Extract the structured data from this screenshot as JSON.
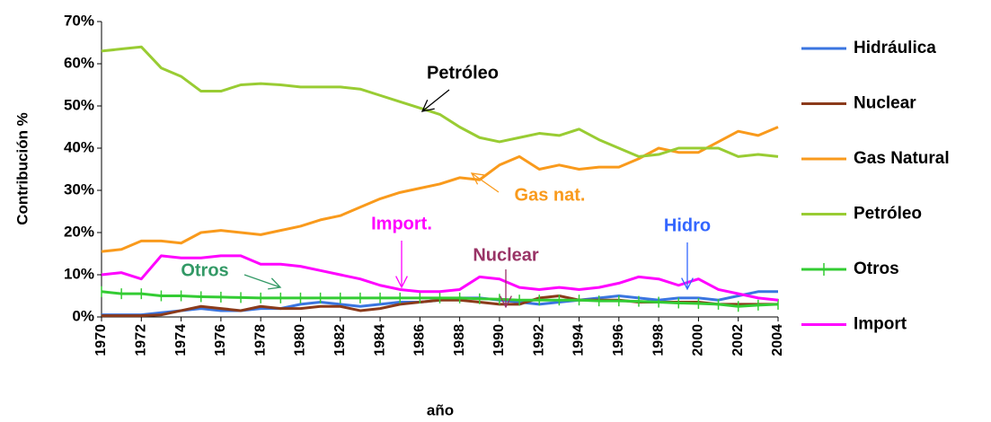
{
  "chart_data": {
    "type": "line",
    "y_label": "Contribución %",
    "x_label": "año",
    "x": [
      1970,
      1971,
      1972,
      1973,
      1974,
      1975,
      1976,
      1977,
      1978,
      1979,
      1980,
      1981,
      1982,
      1983,
      1984,
      1985,
      1986,
      1987,
      1988,
      1989,
      1990,
      1991,
      1992,
      1993,
      1994,
      1995,
      1996,
      1997,
      1998,
      1999,
      2000,
      2001,
      2002,
      2003,
      2004
    ],
    "xlim": [
      1970,
      2004
    ],
    "xticks": [
      1970,
      1972,
      1974,
      1976,
      1978,
      1980,
      1982,
      1984,
      1986,
      1988,
      1990,
      1992,
      1994,
      1996,
      1998,
      2000,
      2002,
      2004
    ],
    "ylim": [
      0,
      70
    ],
    "yticks": [
      {
        "value": 0,
        "label": "0%"
      },
      {
        "value": 10,
        "label": "10%"
      },
      {
        "value": 20,
        "label": "20%"
      },
      {
        "value": 30,
        "label": "30%"
      },
      {
        "value": 40,
        "label": "40%"
      },
      {
        "value": 50,
        "label": "50%"
      },
      {
        "value": 60,
        "label": "60%"
      },
      {
        "value": 70,
        "label": "70%"
      }
    ],
    "grid": false,
    "legend": "right",
    "series": [
      {
        "name": "Hidráulica",
        "color": "#3a75e0",
        "values": [
          0.5,
          0.5,
          0.5,
          1,
          1.5,
          2,
          1.5,
          1.5,
          2,
          2,
          3,
          3.5,
          3,
          2.5,
          3,
          3.5,
          3.5,
          4,
          4.5,
          4.5,
          4,
          3.5,
          3,
          3.5,
          4,
          4.5,
          5,
          4.5,
          4,
          4.5,
          4.5,
          4,
          5,
          6,
          6
        ]
      },
      {
        "name": "Nuclear",
        "color": "#8b3a1a",
        "values": [
          0.3,
          0.3,
          0.3,
          0.5,
          1.5,
          2.5,
          2,
          1.5,
          2.5,
          2,
          2,
          2.5,
          2.5,
          1.5,
          2,
          3,
          3.5,
          4,
          4,
          3.5,
          3,
          3,
          4.5,
          5,
          4,
          4,
          4,
          3.5,
          3.5,
          3.5,
          3.5,
          3,
          3,
          3,
          3
        ]
      },
      {
        "name": "Gas Natural",
        "color": "#f99a1c",
        "values": [
          15.5,
          16,
          18,
          18,
          17.5,
          20,
          20.5,
          20,
          19.5,
          20.5,
          21.5,
          23,
          24,
          26,
          28,
          29.5,
          30.5,
          31.5,
          33,
          32.5,
          36,
          38,
          35,
          36,
          35,
          35.5,
          35.5,
          37.5,
          40,
          39,
          39,
          41.5,
          44,
          43,
          45
        ]
      },
      {
        "name": "Petróleo",
        "color": "#99cc33",
        "values": [
          63,
          63.5,
          64,
          59,
          57,
          53.5,
          53.5,
          55,
          55.3,
          55,
          54.5,
          54.5,
          54.5,
          54,
          52.5,
          51,
          49.5,
          48,
          45,
          42.5,
          41.5,
          42.5,
          43.5,
          43,
          44.5,
          42,
          40,
          38,
          38.5,
          40,
          40,
          40,
          38,
          38.5,
          38
        ]
      },
      {
        "name": "Otros",
        "color": "#33cc33",
        "marker": "+",
        "values": [
          6,
          5.5,
          5.5,
          5,
          5,
          4.8,
          4.7,
          4.6,
          4.5,
          4.5,
          4.5,
          4.5,
          4.5,
          4.5,
          4.5,
          4.5,
          4.5,
          4.5,
          4.5,
          4.3,
          4.2,
          4,
          4,
          4,
          4,
          3.8,
          3.8,
          3.7,
          3.5,
          3.3,
          3.2,
          3,
          2.5,
          2.8,
          3
        ]
      },
      {
        "name": "Import",
        "color": "#ff00ff",
        "values": [
          10,
          10.5,
          9,
          14.5,
          14,
          14,
          14.5,
          14.5,
          12.5,
          12.5,
          12,
          11,
          10,
          9,
          7.5,
          6.5,
          6,
          6,
          6.5,
          9.5,
          9,
          7,
          6.5,
          7,
          6.5,
          7,
          8,
          9.5,
          9,
          7.5,
          9,
          6.5,
          5.5,
          4.5,
          4
        ]
      }
    ],
    "annotations": [
      {
        "text": "Petróleo",
        "color": "#000000"
      },
      {
        "text": "Gas nat.",
        "color": "#f99a1c"
      },
      {
        "text": "Import.",
        "color": "#ff00ff"
      },
      {
        "text": "Nuclear",
        "color": "#993366"
      },
      {
        "text": "Hidro",
        "color": "#3366ff"
      },
      {
        "text": "Otros",
        "color": "#339966"
      }
    ]
  }
}
